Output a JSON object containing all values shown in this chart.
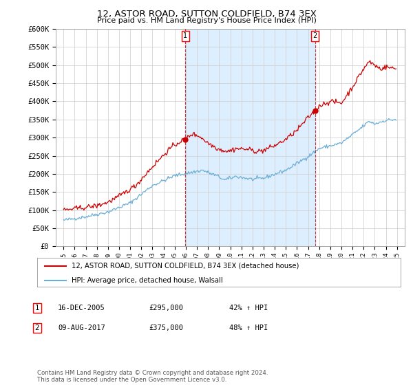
{
  "title": "12, ASTOR ROAD, SUTTON COLDFIELD, B74 3EX",
  "subtitle": "Price paid vs. HM Land Registry's House Price Index (HPI)",
  "ylabel_ticks": [
    "£0",
    "£50K",
    "£100K",
    "£150K",
    "£200K",
    "£250K",
    "£300K",
    "£350K",
    "£400K",
    "£450K",
    "£500K",
    "£550K",
    "£600K"
  ],
  "ylim": [
    0,
    600000
  ],
  "ytick_vals": [
    0,
    50000,
    100000,
    150000,
    200000,
    250000,
    300000,
    350000,
    400000,
    450000,
    500000,
    550000,
    600000
  ],
  "legend_line1": "12, ASTOR ROAD, SUTTON COLDFIELD, B74 3EX (detached house)",
  "legend_line2": "HPI: Average price, detached house, Walsall",
  "table_row1": [
    "1",
    "16-DEC-2005",
    "£295,000",
    "42% ↑ HPI"
  ],
  "table_row2": [
    "2",
    "09-AUG-2017",
    "£375,000",
    "48% ↑ HPI"
  ],
  "footnote": "Contains HM Land Registry data © Crown copyright and database right 2024.\nThis data is licensed under the Open Government Licence v3.0.",
  "hpi_color": "#6baed6",
  "price_color": "#cc0000",
  "sale_marker_color": "#cc0000",
  "vline_color": "#cc0000",
  "shade_color": "#ddeeff",
  "bg_color": "#ffffff",
  "grid_color": "#cccccc",
  "sale1_year": 2005.96,
  "sale1_price": 295000,
  "sale2_year": 2017.63,
  "sale2_price": 375000,
  "xlim_left": 1994.3,
  "xlim_right": 2025.7
}
